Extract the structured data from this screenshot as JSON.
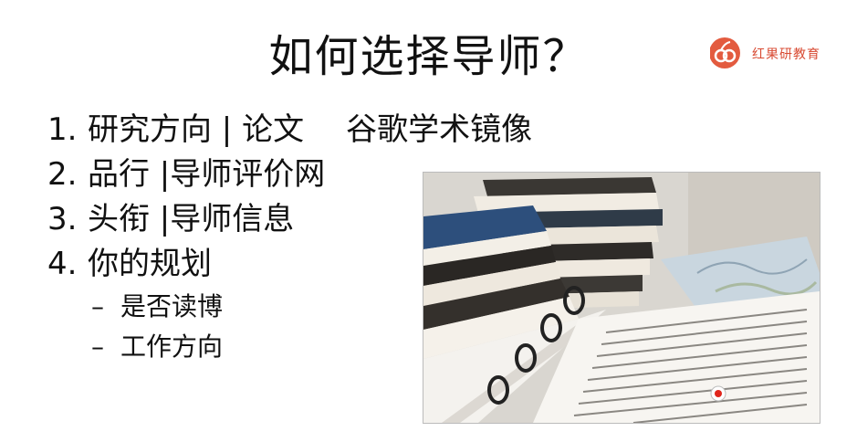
{
  "slide": {
    "title": "如何选择导师？",
    "brand": {
      "name": "红果研教育",
      "color": "#e35b3f"
    },
    "items": [
      {
        "number": "1.",
        "text": "研究方向 | 论文",
        "extra": "谷歌学术镜像"
      },
      {
        "number": "2.",
        "text": "品行 |导师评价网"
      },
      {
        "number": "3.",
        "text": "头衔 |导师信息"
      },
      {
        "number": "4.",
        "text": "你的规划"
      }
    ],
    "subitems": [
      {
        "dash": "–",
        "text": "是否读博"
      },
      {
        "dash": "–",
        "text": "工作方向"
      }
    ],
    "photo": {
      "subject": "books-and-papers-photo",
      "recording_dot_color": "#e0251b"
    }
  }
}
